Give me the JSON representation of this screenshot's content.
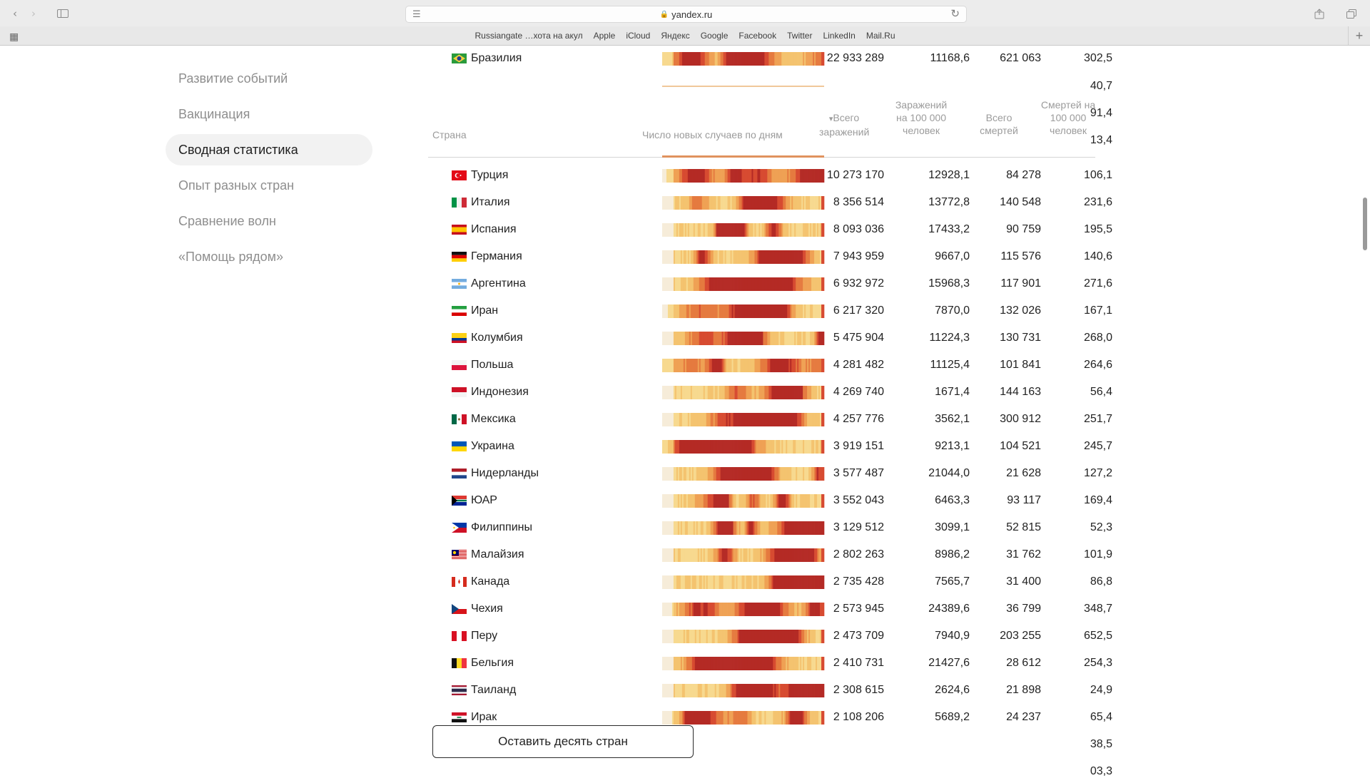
{
  "browser": {
    "url": "yandex.ru",
    "bookmarks": [
      "Russiangate …хота на акул",
      "Apple",
      "iCloud",
      "Яндекс",
      "Google",
      "Facebook",
      "Twitter",
      "LinkedIn",
      "Mail.Ru"
    ],
    "icons": {
      "back": "chevron-left-icon",
      "forward": "chevron-right-icon",
      "sidebar": "sidebar-icon",
      "share": "share-icon",
      "tabs": "tabs-icon",
      "reader": "reader-icon",
      "reload": "reload-icon",
      "grid": "grid-icon",
      "plus": "plus-icon"
    }
  },
  "sidebar": {
    "items": [
      {
        "label": "Развитие событий",
        "active": false
      },
      {
        "label": "Вакцинация",
        "active": false
      },
      {
        "label": "Сводная статистика",
        "active": true
      },
      {
        "label": "Опыт разных стран",
        "active": false
      },
      {
        "label": "Сравнение волн",
        "active": false
      },
      {
        "label": "«Помощь рядом»",
        "active": false
      }
    ]
  },
  "table": {
    "headers": {
      "country": "Страна",
      "daily": "Число новых случаев по дням",
      "total_cases": "Всего заражений",
      "cases_per_100k": "Заражений на 100 000 человек",
      "total_deaths": "Всего смертей",
      "deaths_per_100k": "Смертей на 100 000 человек"
    },
    "sort_indicator": "▾",
    "top_row": {
      "country": "Бразилия",
      "flag": "br",
      "total": "22 933 289",
      "per100k": "11168,6",
      "deaths": "621 063",
      "deaths_per100k": "302,5"
    },
    "partial_values_above": [
      "40,7",
      "91,4",
      "13,4"
    ],
    "rows": [
      {
        "country": "Турция",
        "flag": "tr",
        "total": "10 273 170",
        "per100k": "12928,1",
        "deaths": "84 278",
        "deaths_per100k": "106,1"
      },
      {
        "country": "Италия",
        "flag": "it",
        "total": "8 356 514",
        "per100k": "13772,8",
        "deaths": "140 548",
        "deaths_per100k": "231,6"
      },
      {
        "country": "Испания",
        "flag": "es",
        "total": "8 093 036",
        "per100k": "17433,2",
        "deaths": "90 759",
        "deaths_per100k": "195,5"
      },
      {
        "country": "Германия",
        "flag": "de",
        "total": "7 943 959",
        "per100k": "9667,0",
        "deaths": "115 576",
        "deaths_per100k": "140,6"
      },
      {
        "country": "Аргентина",
        "flag": "ar",
        "total": "6 932 972",
        "per100k": "15968,3",
        "deaths": "117 901",
        "deaths_per100k": "271,6"
      },
      {
        "country": "Иран",
        "flag": "ir",
        "total": "6 217 320",
        "per100k": "7870,0",
        "deaths": "132 026",
        "deaths_per100k": "167,1"
      },
      {
        "country": "Колумбия",
        "flag": "co",
        "total": "5 475 904",
        "per100k": "11224,3",
        "deaths": "130 731",
        "deaths_per100k": "268,0"
      },
      {
        "country": "Польша",
        "flag": "pl",
        "total": "4 281 482",
        "per100k": "11125,4",
        "deaths": "101 841",
        "deaths_per100k": "264,6"
      },
      {
        "country": "Индонезия",
        "flag": "id",
        "total": "4 269 740",
        "per100k": "1671,4",
        "deaths": "144 163",
        "deaths_per100k": "56,4"
      },
      {
        "country": "Мексика",
        "flag": "mx",
        "total": "4 257 776",
        "per100k": "3562,1",
        "deaths": "300 912",
        "deaths_per100k": "251,7"
      },
      {
        "country": "Украина",
        "flag": "ua",
        "total": "3 919 151",
        "per100k": "9213,1",
        "deaths": "104 521",
        "deaths_per100k": "245,7"
      },
      {
        "country": "Нидерланды",
        "flag": "nl",
        "total": "3 577 487",
        "per100k": "21044,0",
        "deaths": "21 628",
        "deaths_per100k": "127,2"
      },
      {
        "country": "ЮАР",
        "flag": "za",
        "total": "3 552 043",
        "per100k": "6463,3",
        "deaths": "93 117",
        "deaths_per100k": "169,4"
      },
      {
        "country": "Филиппины",
        "flag": "ph",
        "total": "3 129 512",
        "per100k": "3099,1",
        "deaths": "52 815",
        "deaths_per100k": "52,3"
      },
      {
        "country": "Малайзия",
        "flag": "my",
        "total": "2 802 263",
        "per100k": "8986,2",
        "deaths": "31 762",
        "deaths_per100k": "101,9"
      },
      {
        "country": "Канада",
        "flag": "ca",
        "total": "2 735 428",
        "per100k": "7565,7",
        "deaths": "31 400",
        "deaths_per100k": "86,8"
      },
      {
        "country": "Чехия",
        "flag": "cz",
        "total": "2 573 945",
        "per100k": "24389,6",
        "deaths": "36 799",
        "deaths_per100k": "348,7"
      },
      {
        "country": "Перу",
        "flag": "pe",
        "total": "2 473 709",
        "per100k": "7940,9",
        "deaths": "203 255",
        "deaths_per100k": "652,5"
      },
      {
        "country": "Бельгия",
        "flag": "be",
        "total": "2 410 731",
        "per100k": "21427,6",
        "deaths": "28 612",
        "deaths_per100k": "254,3"
      },
      {
        "country": "Таиланд",
        "flag": "th",
        "total": "2 308 615",
        "per100k": "2624,6",
        "deaths": "21 898",
        "deaths_per100k": "24,9"
      },
      {
        "country": "Ирак",
        "flag": "iq",
        "total": "2 108 206",
        "per100k": "5689,2",
        "deaths": "24 237",
        "deaths_per100k": "65,4"
      }
    ],
    "partial_values_below": [
      "38,5",
      "03,3"
    ],
    "button_label": "Оставить десять стран"
  },
  "colors": {
    "heat_low": "#f7d98f",
    "heat_mid": "#ef9c4c",
    "heat_high": "#c9302c",
    "active_bg": "#f2f2f2",
    "muted_text": "#8e8e8e"
  }
}
